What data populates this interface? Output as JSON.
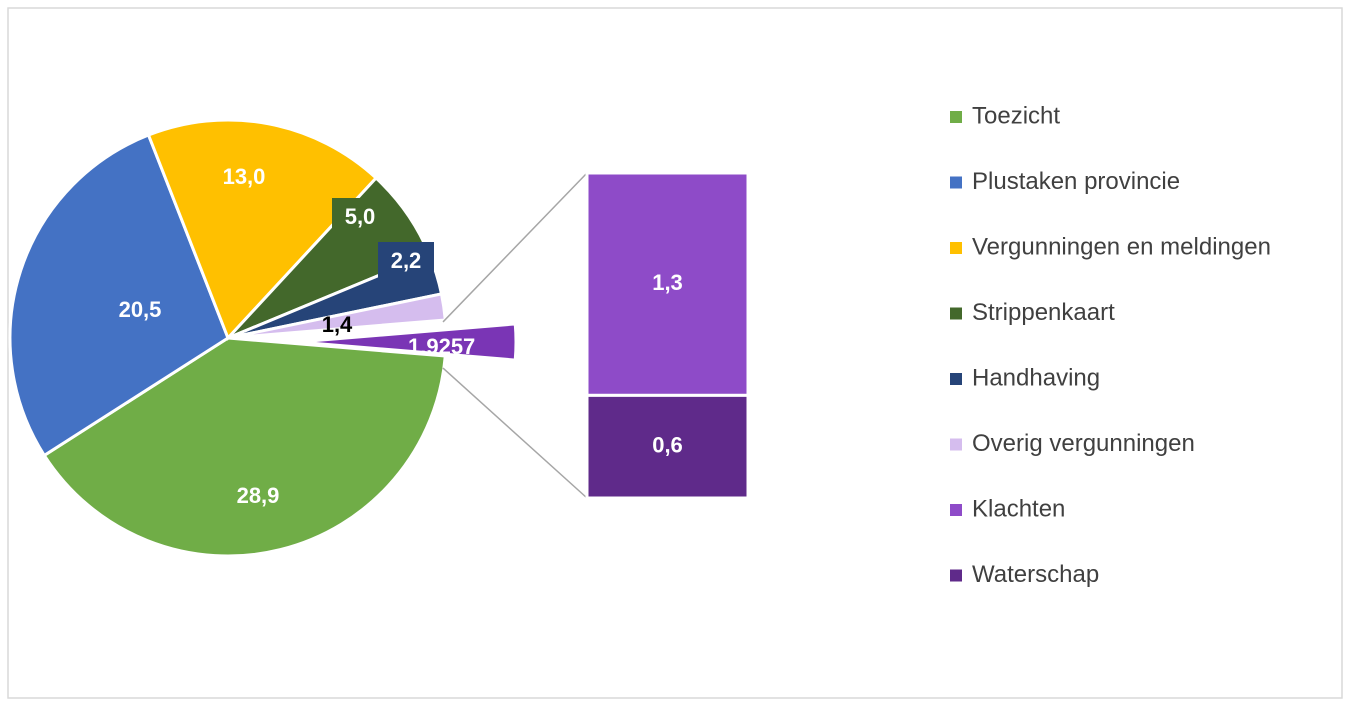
{
  "chart_data": {
    "type": "bar-of-pie",
    "pie": [
      {
        "name": "Toezicht",
        "color": "#70ad47",
        "value": 28.9,
        "value_label": "28,9"
      },
      {
        "name": "Plustaken provincie",
        "color": "#4472c4",
        "value": 20.5,
        "value_label": "20,5"
      },
      {
        "name": "Vergunningen en meldingen",
        "color": "#ffc000",
        "value": 13.0,
        "value_label": "13,0"
      },
      {
        "name": "Strippenkaart",
        "color": "#43682b",
        "value": 5.0,
        "value_label": "5,0"
      },
      {
        "name": "Handhaving",
        "color": "#264478",
        "value": 2.2,
        "value_label": "2,2"
      },
      {
        "name": "Overig vergunningen",
        "color": "#d5bdee",
        "value": 1.4,
        "value_label": "1,4"
      }
    ],
    "other": {
      "color": "#7a35b5",
      "value": 1.9257
    },
    "bar": [
      {
        "name": "Klachten",
        "color": "#8e4bc8",
        "value": 1.3,
        "value_label": "1,3"
      },
      {
        "name": "Waterschap",
        "color": "#5f2a8a",
        "value": 0.6,
        "value_label": "0,6"
      }
    ]
  }
}
